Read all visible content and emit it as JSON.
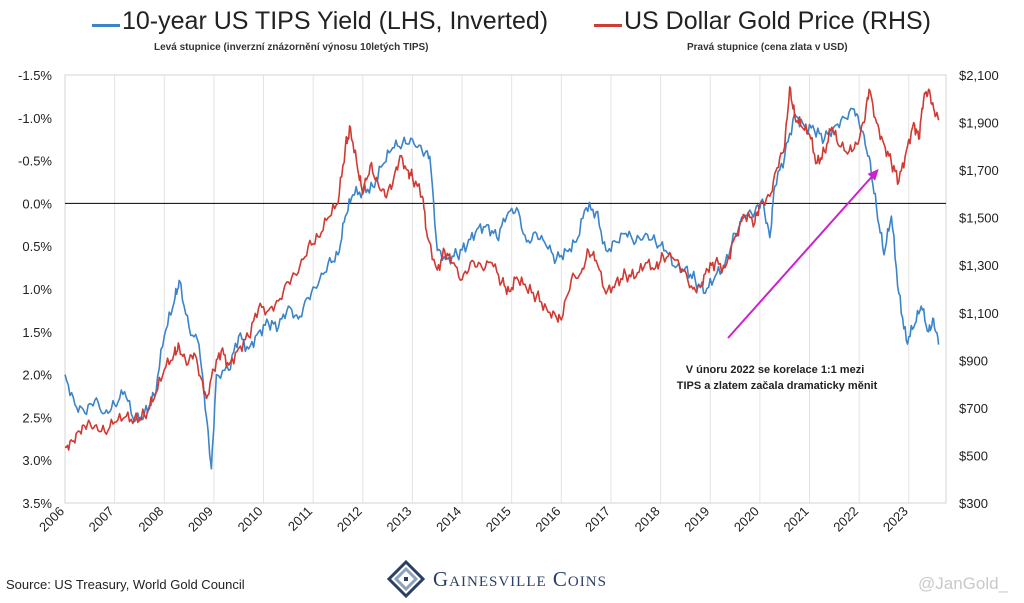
{
  "legend": {
    "tips_label": "10-year US TIPS Yield (LHS, Inverted)",
    "tips_sub": "Levá stupnice (inverzní znázornění výnosu 10letých TIPS)",
    "gold_label": "US Dollar Gold Price (RHS)",
    "gold_sub": "Pravá stupnice (cena zlata v USD)"
  },
  "footer": {
    "source": "Source: US Treasury, World Gold Council",
    "brand": "Gainesville Coins",
    "watermark": "@JanGold_"
  },
  "colors": {
    "tips": "#3b84c8",
    "gold": "#cf3a33",
    "arrow": "#cc22cc",
    "zero_line": "#000000",
    "brand": "#2a3f66"
  },
  "chart_data": {
    "type": "line",
    "x_ticks": [
      "2006",
      "2007",
      "2008",
      "2009",
      "2010",
      "2011",
      "2012",
      "2013",
      "2014",
      "2015",
      "2016",
      "2017",
      "2018",
      "2019",
      "2020",
      "2021",
      "2022",
      "2023"
    ],
    "xlim": [
      2006,
      2023.75
    ],
    "y_left": {
      "label_ticks": [
        "-1.5%",
        "-1.0%",
        "-0.5%",
        "0.0%",
        "0.5%",
        "1.0%",
        "1.5%",
        "2.0%",
        "2.5%",
        "3.0%",
        "3.5%"
      ],
      "values": [
        -1.5,
        -1.0,
        -0.5,
        0,
        0.5,
        1.0,
        1.5,
        2.0,
        2.5,
        3.0,
        3.5
      ],
      "range": [
        -1.5,
        3.5
      ],
      "inverted": true
    },
    "y_right": {
      "label_ticks": [
        "$2,100",
        "$1,900",
        "$1,700",
        "$1,500",
        "$1,300",
        "$1,100",
        "$900",
        "$700",
        "$500",
        "$300"
      ],
      "values": [
        2100,
        1900,
        1700,
        1500,
        1300,
        1100,
        900,
        700,
        500,
        300
      ],
      "range": [
        300,
        2100
      ]
    },
    "grid": "vertical",
    "annotation": {
      "lines": [
        "V únoru 2022 se korelace 1:1 mezi",
        "TIPS a zlatem začala dramaticky měnit"
      ]
    },
    "series": [
      {
        "name": "10-year US TIPS Yield (LHS, Inverted)",
        "axis": "left",
        "points": [
          [
            2006.0,
            2.0
          ],
          [
            2006.2,
            2.35
          ],
          [
            2006.4,
            2.45
          ],
          [
            2006.6,
            2.3
          ],
          [
            2006.8,
            2.45
          ],
          [
            2007.0,
            2.35
          ],
          [
            2007.2,
            2.2
          ],
          [
            2007.4,
            2.55
          ],
          [
            2007.6,
            2.45
          ],
          [
            2007.8,
            2.25
          ],
          [
            2008.0,
            1.55
          ],
          [
            2008.2,
            1.15
          ],
          [
            2008.3,
            0.9
          ],
          [
            2008.5,
            1.45
          ],
          [
            2008.7,
            1.65
          ],
          [
            2008.85,
            2.5
          ],
          [
            2008.95,
            3.1
          ],
          [
            2009.05,
            2.0
          ],
          [
            2009.3,
            1.95
          ],
          [
            2009.5,
            1.55
          ],
          [
            2009.7,
            1.7
          ],
          [
            2009.9,
            1.5
          ],
          [
            2010.1,
            1.4
          ],
          [
            2010.3,
            1.45
          ],
          [
            2010.5,
            1.2
          ],
          [
            2010.7,
            1.35
          ],
          [
            2010.9,
            1.1
          ],
          [
            2011.1,
            0.95
          ],
          [
            2011.3,
            0.7
          ],
          [
            2011.5,
            0.6
          ],
          [
            2011.65,
            0.15
          ],
          [
            2011.8,
            -0.1
          ],
          [
            2012.0,
            -0.15
          ],
          [
            2012.2,
            -0.2
          ],
          [
            2012.4,
            -0.45
          ],
          [
            2012.6,
            -0.65
          ],
          [
            2012.8,
            -0.7
          ],
          [
            2013.0,
            -0.75
          ],
          [
            2013.2,
            -0.6
          ],
          [
            2013.35,
            -0.55
          ],
          [
            2013.5,
            0.55
          ],
          [
            2013.7,
            0.65
          ],
          [
            2013.9,
            0.6
          ],
          [
            2014.1,
            0.5
          ],
          [
            2014.3,
            0.3
          ],
          [
            2014.5,
            0.25
          ],
          [
            2014.7,
            0.4
          ],
          [
            2014.9,
            0.15
          ],
          [
            2015.1,
            0.05
          ],
          [
            2015.3,
            0.45
          ],
          [
            2015.5,
            0.35
          ],
          [
            2015.7,
            0.5
          ],
          [
            2015.9,
            0.65
          ],
          [
            2016.1,
            0.55
          ],
          [
            2016.3,
            0.45
          ],
          [
            2016.5,
            0.05
          ],
          [
            2016.7,
            0.1
          ],
          [
            2016.9,
            0.55
          ],
          [
            2017.1,
            0.45
          ],
          [
            2017.3,
            0.35
          ],
          [
            2017.5,
            0.45
          ],
          [
            2017.7,
            0.35
          ],
          [
            2017.9,
            0.45
          ],
          [
            2018.1,
            0.55
          ],
          [
            2018.3,
            0.75
          ],
          [
            2018.5,
            0.75
          ],
          [
            2018.7,
            0.9
          ],
          [
            2018.9,
            1.05
          ],
          [
            2019.1,
            0.85
          ],
          [
            2019.3,
            0.7
          ],
          [
            2019.5,
            0.35
          ],
          [
            2019.7,
            0.15
          ],
          [
            2019.9,
            0.1
          ],
          [
            2020.05,
            -0.05
          ],
          [
            2020.2,
            0.4
          ],
          [
            2020.3,
            -0.2
          ],
          [
            2020.5,
            -0.55
          ],
          [
            2020.7,
            -1.05
          ],
          [
            2020.9,
            -0.9
          ],
          [
            2021.1,
            -0.85
          ],
          [
            2021.3,
            -0.75
          ],
          [
            2021.5,
            -0.9
          ],
          [
            2021.7,
            -1.0
          ],
          [
            2021.9,
            -1.1
          ],
          [
            2022.05,
            -0.85
          ],
          [
            2022.2,
            -0.55
          ],
          [
            2022.35,
            0.05
          ],
          [
            2022.5,
            0.6
          ],
          [
            2022.65,
            0.15
          ],
          [
            2022.8,
            1.05
          ],
          [
            2022.95,
            1.6
          ],
          [
            2023.1,
            1.45
          ],
          [
            2023.25,
            1.2
          ],
          [
            2023.4,
            1.5
          ],
          [
            2023.5,
            1.35
          ],
          [
            2023.6,
            1.65
          ]
        ]
      },
      {
        "name": "US Dollar Gold Price (RHS)",
        "axis": "right",
        "points": [
          [
            2006.0,
            535
          ],
          [
            2006.15,
            560
          ],
          [
            2006.3,
            600
          ],
          [
            2006.45,
            630
          ],
          [
            2006.6,
            625
          ],
          [
            2006.8,
            600
          ],
          [
            2007.0,
            640
          ],
          [
            2007.2,
            660
          ],
          [
            2007.4,
            655
          ],
          [
            2007.6,
            670
          ],
          [
            2007.8,
            740
          ],
          [
            2008.0,
            860
          ],
          [
            2008.2,
            930
          ],
          [
            2008.3,
            960
          ],
          [
            2008.45,
            880
          ],
          [
            2008.6,
            930
          ],
          [
            2008.75,
            820
          ],
          [
            2008.85,
            740
          ],
          [
            2009.0,
            860
          ],
          [
            2009.15,
            940
          ],
          [
            2009.3,
            880
          ],
          [
            2009.5,
            950
          ],
          [
            2009.7,
            1000
          ],
          [
            2009.9,
            1120
          ],
          [
            2010.1,
            1110
          ],
          [
            2010.3,
            1150
          ],
          [
            2010.5,
            1230
          ],
          [
            2010.7,
            1270
          ],
          [
            2010.9,
            1380
          ],
          [
            2011.1,
            1420
          ],
          [
            2011.3,
            1500
          ],
          [
            2011.5,
            1560
          ],
          [
            2011.65,
            1800
          ],
          [
            2011.75,
            1880
          ],
          [
            2011.9,
            1700
          ],
          [
            2012.0,
            1600
          ],
          [
            2012.15,
            1720
          ],
          [
            2012.3,
            1650
          ],
          [
            2012.45,
            1590
          ],
          [
            2012.6,
            1640
          ],
          [
            2012.75,
            1760
          ],
          [
            2012.9,
            1700
          ],
          [
            2013.0,
            1670
          ],
          [
            2013.2,
            1590
          ],
          [
            2013.3,
            1420
          ],
          [
            2013.5,
            1280
          ],
          [
            2013.65,
            1360
          ],
          [
            2013.8,
            1310
          ],
          [
            2014.0,
            1240
          ],
          [
            2014.2,
            1320
          ],
          [
            2014.4,
            1290
          ],
          [
            2014.6,
            1310
          ],
          [
            2014.8,
            1230
          ],
          [
            2014.95,
            1190
          ],
          [
            2015.1,
            1250
          ],
          [
            2015.3,
            1200
          ],
          [
            2015.5,
            1170
          ],
          [
            2015.7,
            1120
          ],
          [
            2015.9,
            1080
          ],
          [
            2016.0,
            1070
          ],
          [
            2016.2,
            1240
          ],
          [
            2016.4,
            1270
          ],
          [
            2016.55,
            1360
          ],
          [
            2016.7,
            1320
          ],
          [
            2016.9,
            1180
          ],
          [
            2017.1,
            1230
          ],
          [
            2017.3,
            1260
          ],
          [
            2017.5,
            1250
          ],
          [
            2017.7,
            1310
          ],
          [
            2017.9,
            1290
          ],
          [
            2018.05,
            1340
          ],
          [
            2018.25,
            1330
          ],
          [
            2018.45,
            1280
          ],
          [
            2018.65,
            1200
          ],
          [
            2018.8,
            1210
          ],
          [
            2018.95,
            1280
          ],
          [
            2019.1,
            1310
          ],
          [
            2019.3,
            1290
          ],
          [
            2019.5,
            1420
          ],
          [
            2019.7,
            1510
          ],
          [
            2019.9,
            1480
          ],
          [
            2020.0,
            1560
          ],
          [
            2020.2,
            1590
          ],
          [
            2020.35,
            1710
          ],
          [
            2020.5,
            1800
          ],
          [
            2020.6,
            2050
          ],
          [
            2020.7,
            1930
          ],
          [
            2020.85,
            1880
          ],
          [
            2021.0,
            1850
          ],
          [
            2021.15,
            1730
          ],
          [
            2021.3,
            1780
          ],
          [
            2021.45,
            1880
          ],
          [
            2021.6,
            1800
          ],
          [
            2021.8,
            1780
          ],
          [
            2021.95,
            1810
          ],
          [
            2022.1,
            1900
          ],
          [
            2022.2,
            2040
          ],
          [
            2022.35,
            1900
          ],
          [
            2022.5,
            1810
          ],
          [
            2022.65,
            1730
          ],
          [
            2022.8,
            1650
          ],
          [
            2022.95,
            1780
          ],
          [
            2023.1,
            1900
          ],
          [
            2023.2,
            1830
          ],
          [
            2023.3,
            2000
          ],
          [
            2023.4,
            2040
          ],
          [
            2023.5,
            1960
          ],
          [
            2023.6,
            1910
          ]
        ]
      }
    ]
  }
}
